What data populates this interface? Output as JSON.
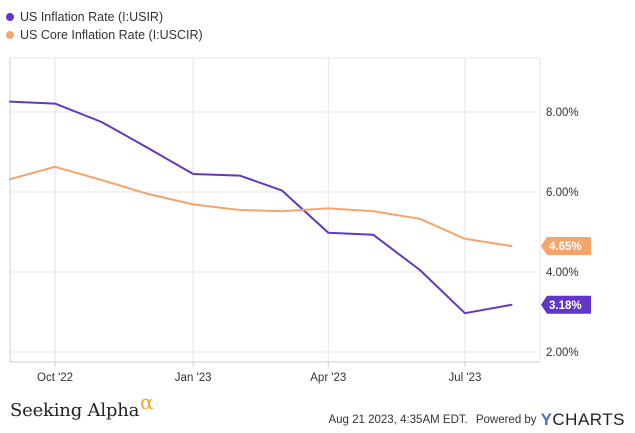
{
  "colors": {
    "background": "#ffffff",
    "grid": "#e4e4e4",
    "axis": "#cfcfcf"
  },
  "chart_data": {
    "type": "line",
    "title": "",
    "xlabel": "",
    "ylabel": "",
    "x": [
      "2022-09-01",
      "2022-10-01",
      "2022-11-01",
      "2022-12-01",
      "2023-01-01",
      "2023-02-01",
      "2023-03-01",
      "2023-04-01",
      "2023-05-01",
      "2023-06-01",
      "2023-07-01",
      "2023-08-01"
    ],
    "x_range": [
      "2022-09-01",
      "2023-08-20"
    ],
    "ylim": [
      1.75,
      9.35
    ],
    "y_ticks": [
      2,
      4,
      6,
      8
    ],
    "y_tick_labels": [
      "2.00%",
      "4.00%",
      "6.00%",
      "8.00%"
    ],
    "x_ticks": [
      "2022-10-01",
      "2023-01-01",
      "2023-04-01",
      "2023-07-01"
    ],
    "x_tick_labels": [
      "Oct '22",
      "Jan '23",
      "Apr '23",
      "Jul '23"
    ],
    "grid": true,
    "legend_position": "top-left",
    "series": [
      {
        "name": "US Inflation Rate (I:USIR)",
        "color": "#6236c9",
        "values": [
          8.26,
          8.21,
          7.75,
          7.12,
          6.45,
          6.41,
          6.04,
          4.98,
          4.93,
          4.05,
          2.97,
          3.18
        ],
        "last_label": "3.18%"
      },
      {
        "name": "US Core Inflation Rate (I:USCIR)",
        "color": "#f7a46a",
        "values": [
          6.32,
          6.63,
          6.3,
          5.96,
          5.69,
          5.55,
          5.52,
          5.59,
          5.52,
          5.33,
          4.83,
          4.65
        ],
        "last_label": "4.65%"
      }
    ]
  },
  "footer": {
    "logo_text": "Seeking Alpha",
    "logo_symbol": "α",
    "timestamp": "Aug 21 2023, 4:35AM EDT.",
    "powered_by": "Powered by",
    "brand_y": "Y",
    "brand_rest": "CHARTS"
  }
}
